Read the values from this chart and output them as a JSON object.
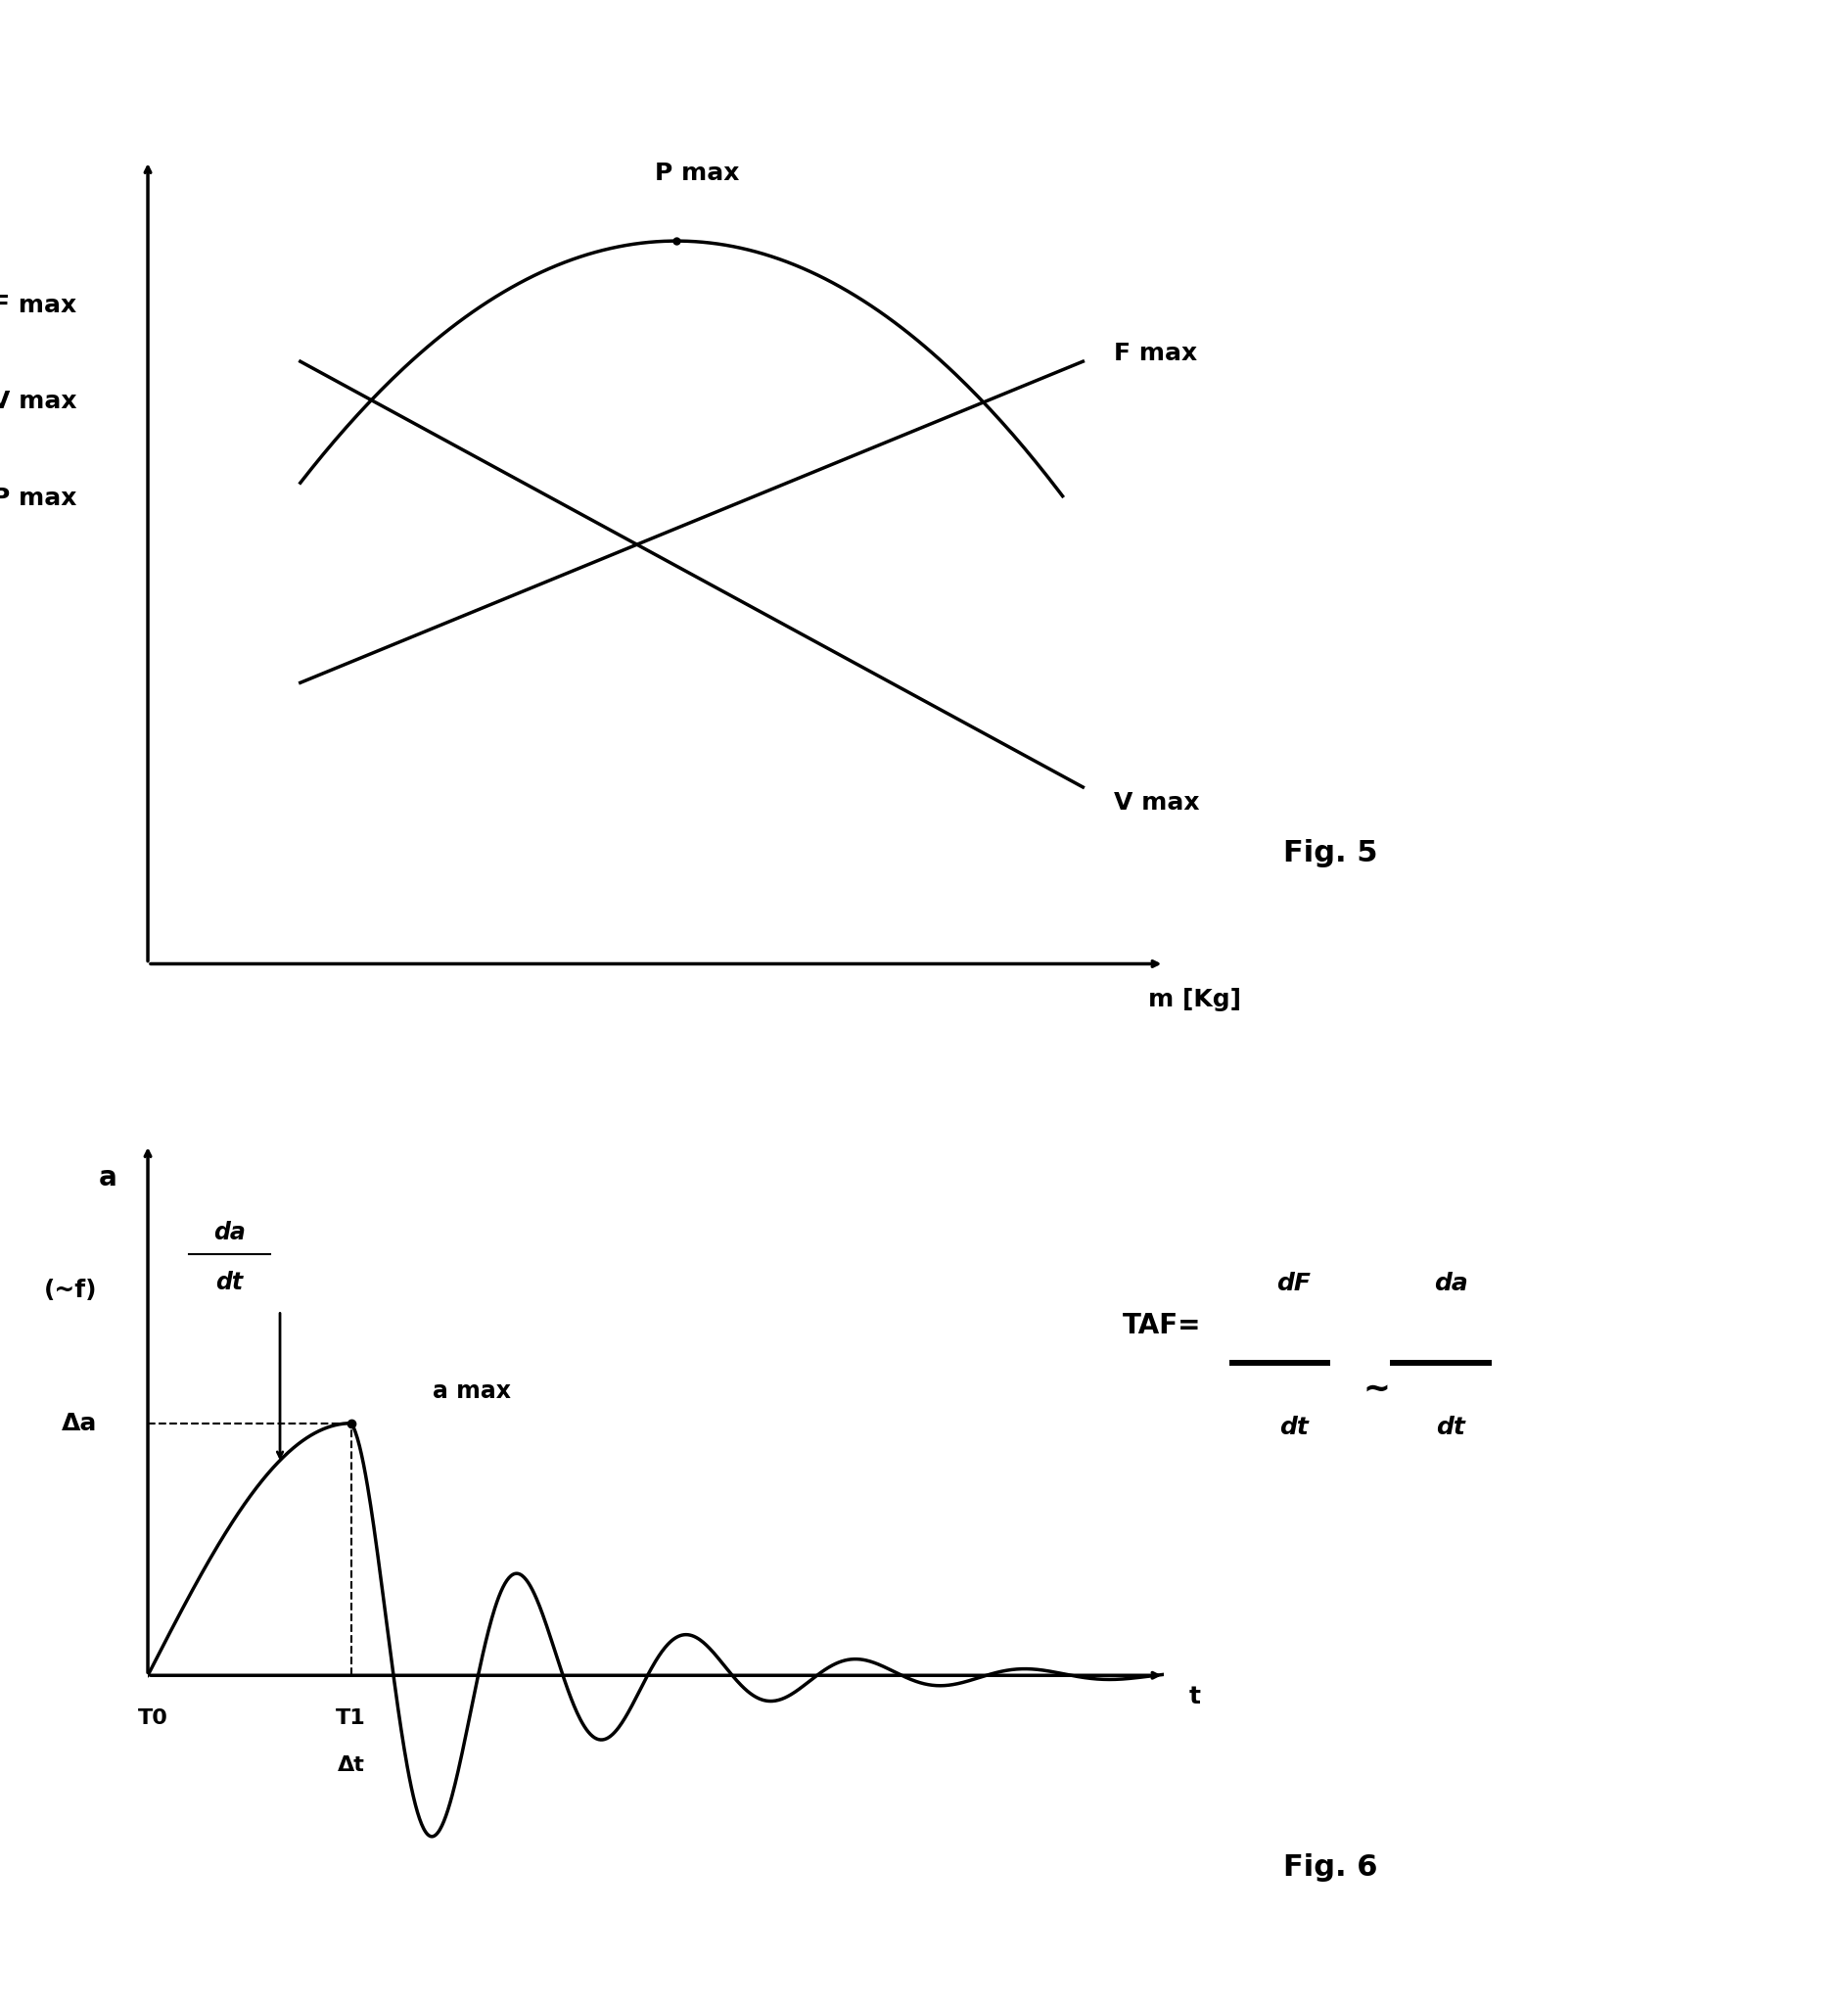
{
  "fig5_ylabel": "F max\nV max\nP max",
  "fig5_xlabel": "m [Kg]",
  "fig5_pmax_label": "P max",
  "fig5_fmax_label": "F max",
  "fig5_vmax_label": "V max",
  "fig6_ylabel_a": "a",
  "fig6_ylabel_f": "(~f)",
  "fig6_xlabel": "t",
  "fig6_delta_a": "Δa",
  "fig6_t0": "T0",
  "fig6_t1": "T1",
  "fig6_delta_t": "Δt",
  "fig6_amax_label": "a max",
  "fig6_dadt_label": "da\ndt",
  "fig6_taf_label": "TAF=",
  "fig5_caption": "Fig. 5",
  "fig6_caption": "Fig. 6",
  "line_color": "#000000",
  "bg_color": "#ffffff",
  "linewidth": 2.5
}
